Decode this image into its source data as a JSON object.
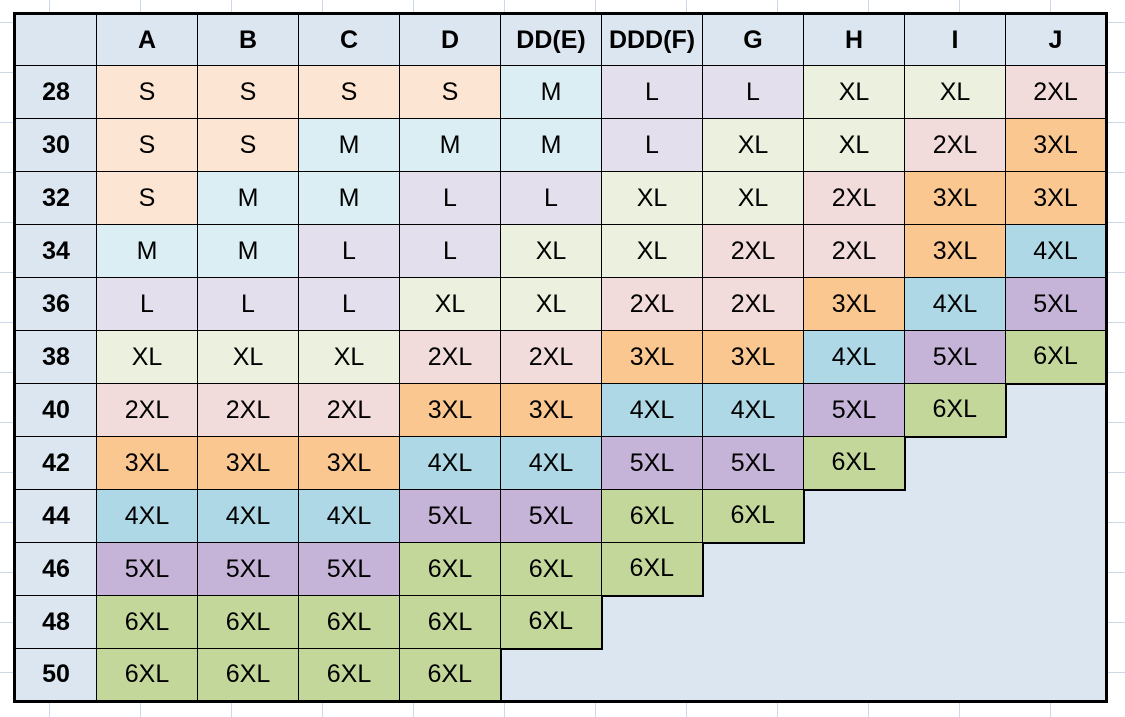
{
  "table": {
    "corner_label": "",
    "column_headers": [
      "A",
      "B",
      "C",
      "D",
      "DD(E)",
      "DDD(F)",
      "G",
      "H",
      "I",
      "J"
    ],
    "rows": [
      {
        "band": "28",
        "cells": [
          "S",
          "S",
          "S",
          "S",
          "M",
          "L",
          "L",
          "XL",
          "XL",
          "2XL"
        ]
      },
      {
        "band": "30",
        "cells": [
          "S",
          "S",
          "M",
          "M",
          "M",
          "L",
          "XL",
          "XL",
          "2XL",
          "3XL"
        ]
      },
      {
        "band": "32",
        "cells": [
          "S",
          "M",
          "M",
          "L",
          "L",
          "XL",
          "XL",
          "2XL",
          "3XL",
          "3XL"
        ]
      },
      {
        "band": "34",
        "cells": [
          "M",
          "M",
          "L",
          "L",
          "XL",
          "XL",
          "2XL",
          "2XL",
          "3XL",
          "4XL"
        ]
      },
      {
        "band": "36",
        "cells": [
          "L",
          "L",
          "L",
          "XL",
          "XL",
          "2XL",
          "2XL",
          "3XL",
          "4XL",
          "5XL"
        ]
      },
      {
        "band": "38",
        "cells": [
          "XL",
          "XL",
          "XL",
          "2XL",
          "2XL",
          "3XL",
          "3XL",
          "4XL",
          "5XL",
          "6XL"
        ]
      },
      {
        "band": "40",
        "cells": [
          "2XL",
          "2XL",
          "2XL",
          "3XL",
          "3XL",
          "4XL",
          "4XL",
          "5XL",
          "6XL",
          null
        ]
      },
      {
        "band": "42",
        "cells": [
          "3XL",
          "3XL",
          "3XL",
          "4XL",
          "4XL",
          "5XL",
          "5XL",
          "6XL",
          null,
          null
        ]
      },
      {
        "band": "44",
        "cells": [
          "4XL",
          "4XL",
          "4XL",
          "5XL",
          "5XL",
          "6XL",
          "6XL",
          null,
          null,
          null
        ]
      },
      {
        "band": "46",
        "cells": [
          "5XL",
          "5XL",
          "5XL",
          "6XL",
          "6XL",
          "6XL",
          null,
          null,
          null,
          null
        ]
      },
      {
        "band": "48",
        "cells": [
          "6XL",
          "6XL",
          "6XL",
          "6XL",
          "6XL",
          null,
          null,
          null,
          null,
          null
        ]
      },
      {
        "band": "50",
        "cells": [
          "6XL",
          "6XL",
          "6XL",
          "6XL",
          null,
          null,
          null,
          null,
          null,
          null
        ]
      }
    ]
  },
  "colors": {
    "header_bg": "#DCE6F1",
    "empty_bg": "#DCE6F1",
    "grid_line": "#000000",
    "sizes": {
      "S": "#FCE5D2",
      "M": "#DAEEF3",
      "L": "#E4DFEC",
      "XL": "#EBF1DE",
      "2XL": "#F2DCDB",
      "3XL": "#FBC791",
      "4XL": "#AFD8E6",
      "5XL": "#C5B4D7",
      "6XL": "#C4D79B"
    }
  }
}
